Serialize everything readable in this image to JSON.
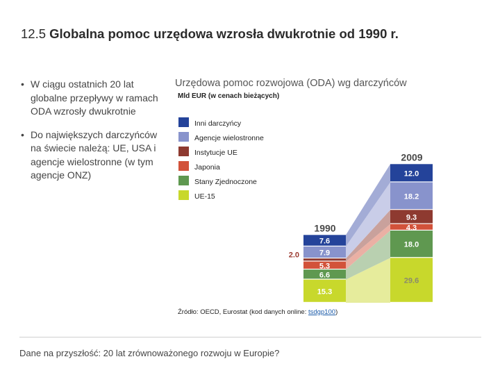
{
  "slide": {
    "title_number": "12.5",
    "title_text": "Globalna pomoc urzędowa wzrosła dwukrotnie od 1990 r.",
    "bullets": [
      "W ciągu ostatnich 20 lat globalne przepływy w ramach ODA wzrosły dwukrotnie",
      "Do największych darczyńców na świecie należą: UE, USA i agencje wielostronne (w tym agencje ONZ)"
    ],
    "bullet_marker": "•",
    "footer": "Dane na przyszłość: 20 lat zrównoważonego rozwoju w Europie?"
  },
  "source": {
    "prefix": "Źródło: OECD, Eurostat (kod danych online: ",
    "link": "tsdgp100",
    "suffix": ")"
  },
  "chart_data": {
    "type": "bar",
    "stacked": true,
    "title": "Urzędowa pomoc rozwojowa (ODA) wg darczyńców",
    "subtitle": "Mld EUR (w cenach bieżących)",
    "categories": [
      "1990",
      "2009"
    ],
    "series": [
      {
        "name": "UE-15",
        "color": "#c8d82c",
        "fill_color": "#e6ec9c",
        "values": [
          15.3,
          29.6
        ]
      },
      {
        "name": "Stany Zjednoczone",
        "color": "#5f9850",
        "fill_color": "#b9d0b0",
        "values": [
          6.6,
          18.0
        ]
      },
      {
        "name": "Japonia",
        "color": "#d2523a",
        "fill_color": "#eab0a4",
        "values": [
          5.3,
          4.3
        ]
      },
      {
        "name": "Instytucje UE",
        "color": "#8e3a30",
        "fill_color": "#c9a19c",
        "values": [
          2.0,
          9.3
        ]
      },
      {
        "name": "Agencje wielostronne",
        "color": "#8893cc",
        "fill_color": "#c9cde8",
        "values": [
          7.9,
          18.2
        ]
      },
      {
        "name": "Inni darczyńcy",
        "color": "#24439a",
        "fill_color": "#a3acd6",
        "values": [
          7.6,
          12.0
        ]
      }
    ],
    "value_labels": [
      [
        "15.3",
        "29.6"
      ],
      [
        "6.6",
        "18.0"
      ],
      [
        "5.3",
        "4.3"
      ],
      [
        "2.0",
        "9.3"
      ],
      [
        "7.9",
        "18.2"
      ],
      [
        "7.6",
        "12.0"
      ]
    ],
    "legend_placement": "top-left",
    "grid": false
  }
}
